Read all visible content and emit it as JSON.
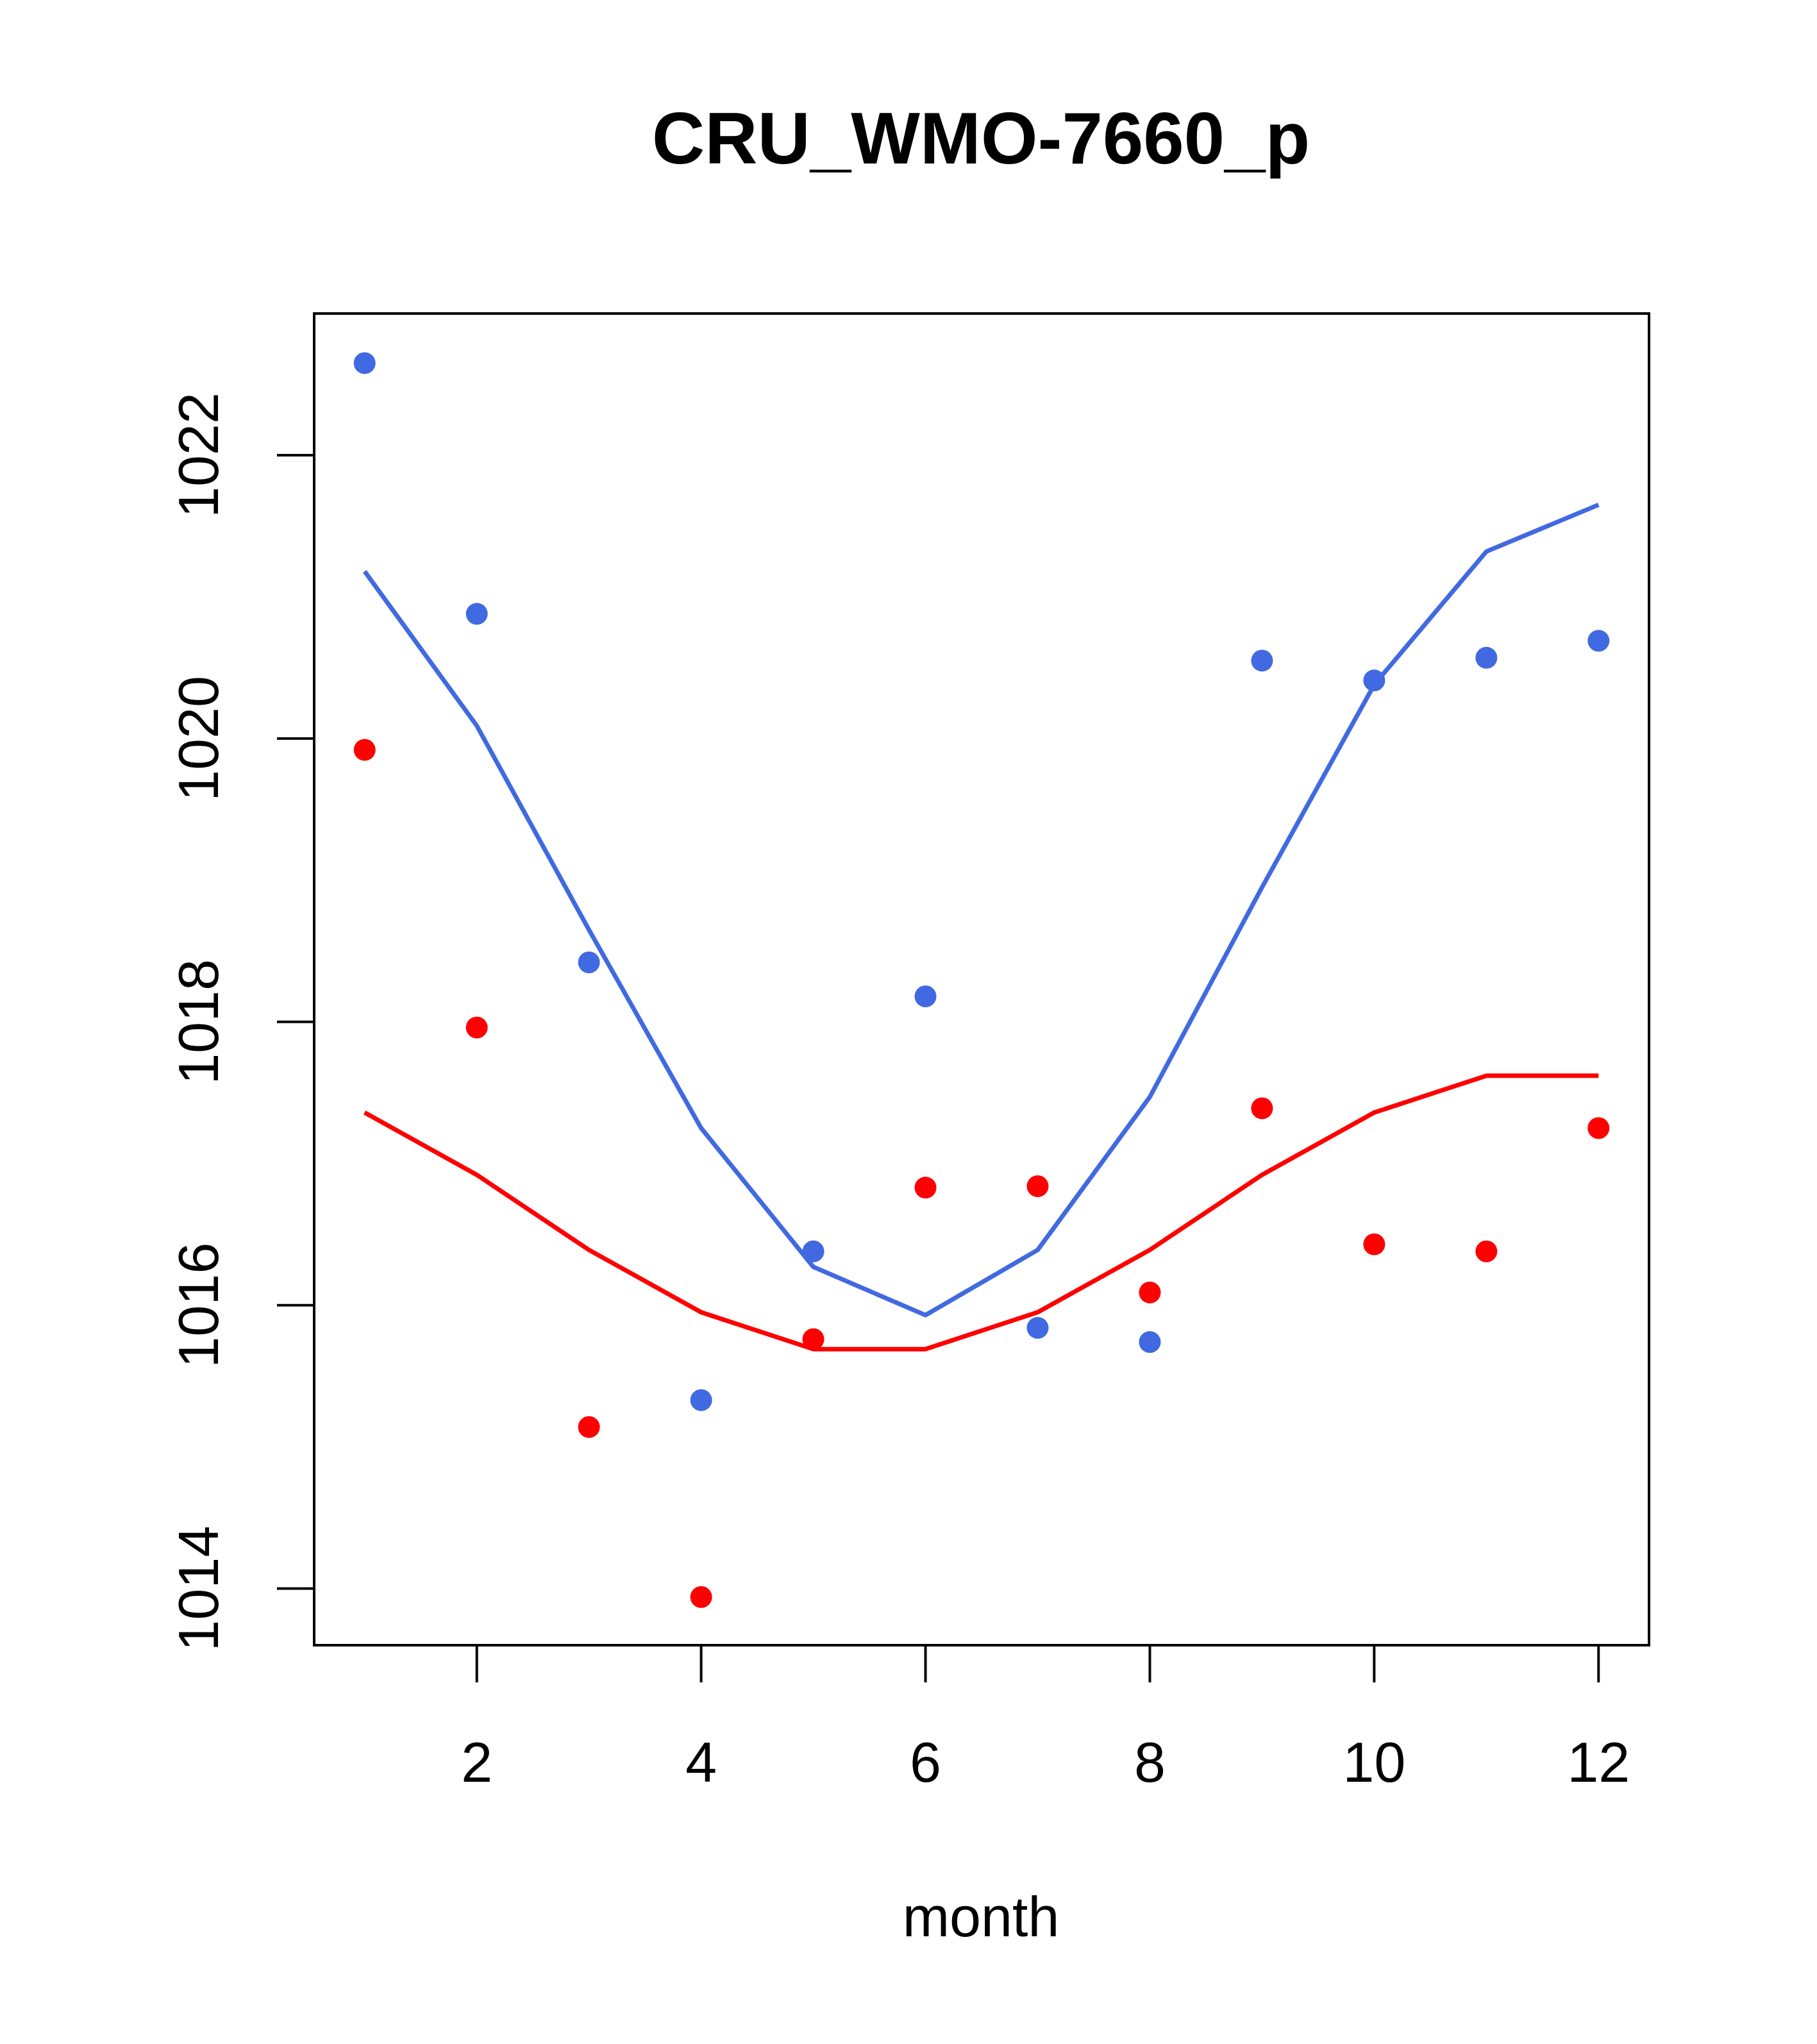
{
  "chart_data": {
    "type": "line",
    "title": "CRU_WMO-7660_p",
    "xlabel": "month",
    "ylabel": "",
    "xlim": [
      0.55,
      12.45
    ],
    "ylim": [
      1013.6,
      1023.0
    ],
    "x_ticks": [
      2,
      4,
      6,
      8,
      10,
      12
    ],
    "y_ticks": [
      1014,
      1016,
      1018,
      1020,
      1022
    ],
    "grid": false,
    "series": [
      {
        "name": "blue points",
        "kind": "points",
        "color": "#4169E1",
        "x": [
          1,
          2,
          3,
          4,
          5,
          6,
          7,
          8,
          9,
          10,
          11,
          12
        ],
        "values": [
          1022.65,
          1020.88,
          1018.42,
          1015.33,
          1016.38,
          1018.18,
          1015.84,
          1015.74,
          1020.55,
          1020.41,
          1020.57,
          1020.69
        ]
      },
      {
        "name": "blue line",
        "kind": "line",
        "color": "#4169E1",
        "x": [
          1,
          2,
          3,
          4,
          5,
          6,
          7,
          8,
          9,
          10,
          11,
          12
        ],
        "values": [
          1021.18,
          1020.09,
          1018.65,
          1017.25,
          1016.27,
          1015.93,
          1016.39,
          1017.47,
          1018.95,
          1020.38,
          1021.32,
          1021.65
        ]
      },
      {
        "name": "red points",
        "kind": "points",
        "color": "#FF0000",
        "x": [
          1,
          2,
          3,
          4,
          5,
          6,
          7,
          8,
          9,
          10,
          11,
          12
        ],
        "values": [
          1019.92,
          1017.96,
          1015.14,
          1013.94,
          1015.76,
          1016.83,
          1016.84,
          1016.09,
          1017.39,
          1016.43,
          1016.38,
          1017.25
        ]
      },
      {
        "name": "red line",
        "kind": "line",
        "color": "#FF0000",
        "x": [
          1,
          2,
          3,
          4,
          5,
          6,
          7,
          8,
          9,
          10,
          11,
          12
        ],
        "values": [
          1017.36,
          1016.92,
          1016.39,
          1015.95,
          1015.69,
          1015.69,
          1015.95,
          1016.39,
          1016.92,
          1017.36,
          1017.62,
          1017.62
        ]
      }
    ]
  }
}
